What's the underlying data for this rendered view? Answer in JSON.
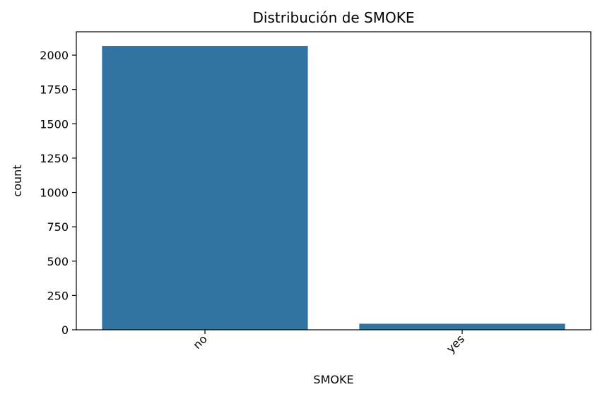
{
  "chart_data": {
    "type": "bar",
    "title": "Distribución de SMOKE",
    "xlabel": "SMOKE",
    "ylabel": "count",
    "categories": [
      "no",
      "yes"
    ],
    "values": [
      2067,
      44
    ],
    "ylim": [
      0,
      2170
    ],
    "yticks": [
      0,
      250,
      500,
      750,
      1000,
      1250,
      1500,
      1750,
      2000
    ],
    "bar_color": "#3274a1",
    "grid": false,
    "legend": "none",
    "xtick_rotation": 45
  }
}
